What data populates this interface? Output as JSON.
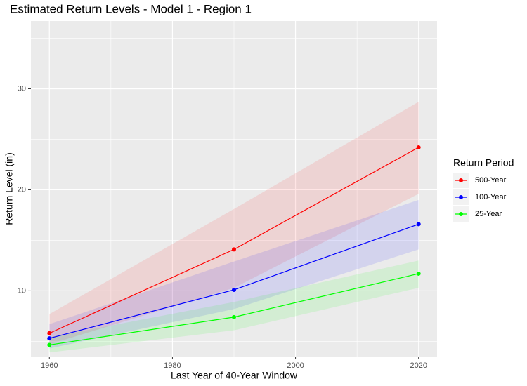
{
  "chart_data": {
    "type": "line",
    "title": "Estimated Return Levels - Model 1 - Region 1",
    "x_label": "Last Year of 40-Year Window",
    "y_label": "Return Level (in)",
    "legend_title": "Return Period",
    "legend_position": "right",
    "x": [
      1960,
      1990,
      2020
    ],
    "series": [
      {
        "name": "500-Year",
        "color": "#ff0000",
        "values": [
          5.8,
          14.1,
          24.2
        ],
        "lower": [
          4.7,
          10.3,
          19.6
        ],
        "upper": [
          7.7,
          18.1,
          28.7
        ]
      },
      {
        "name": "100-Year",
        "color": "#0000ff",
        "values": [
          5.3,
          10.1,
          16.6
        ],
        "lower": [
          4.3,
          8.2,
          14.1
        ],
        "upper": [
          6.7,
          12.9,
          19.0
        ]
      },
      {
        "name": "25-Year",
        "color": "#00ff00",
        "values": [
          4.65,
          7.4,
          11.7
        ],
        "lower": [
          3.9,
          6.1,
          10.3
        ],
        "upper": [
          5.4,
          8.9,
          13.0
        ]
      }
    ],
    "xlim": [
      1957,
      2023
    ],
    "xticks": [
      1960,
      1980,
      2000,
      2020
    ],
    "x_minor_ticks": [
      1970,
      1990,
      2010
    ],
    "ylim": [
      3.5,
      36.7
    ],
    "yticks": [
      10,
      20,
      30
    ],
    "y_minor_ticks": [
      5,
      15,
      25,
      35
    ],
    "grid": true
  }
}
